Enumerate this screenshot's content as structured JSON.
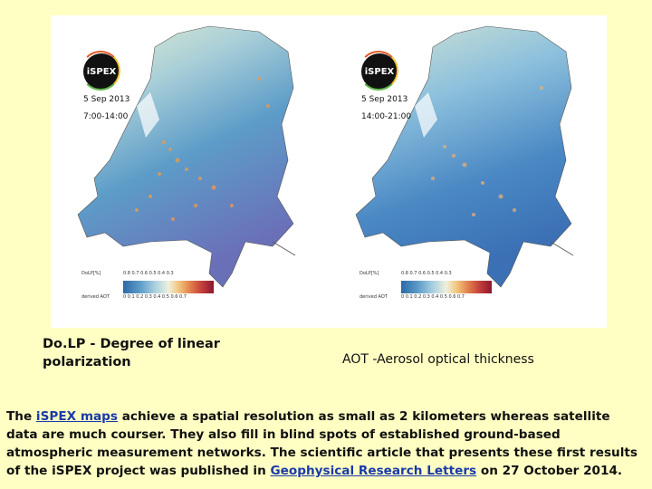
{
  "maps": [
    {
      "id": "left",
      "badge": "iSPEX",
      "date": "5 Sep 2013",
      "time": "7:00-14:00",
      "legend_top_label": "DoLP[%]",
      "legend_top_ticks": "0.8 0.7 0.6  0.5   0.4    0.3",
      "legend_bottom_label": "derived AOT",
      "legend_bottom_ticks": "0   0.1   0.2   0.3   0.4   0.5   0.6   0.7"
    },
    {
      "id": "right",
      "badge": "iSPEX",
      "date": "5 Sep 2013",
      "time": "14:00-21:00",
      "legend_top_label": "DoLP[%]",
      "legend_top_ticks": "0.8 0.7 0.6  0.5   0.4    0.3",
      "legend_bottom_label": "derived AOT",
      "legend_bottom_ticks": "0   0.1   0.2   0.3   0.4   0.5   0.6   0.7"
    }
  ],
  "captions": {
    "left": "Do.LP - Degree of linear polarization",
    "right": "AOT -Aerosol  optical thickness"
  },
  "paragraph": {
    "before_link1": "The ",
    "link1": "iSPEX maps",
    "after_link1": " achieve a spatial resolution as small as 2 kilometers whereas satellite data are much courser. They also fill in blind spots of established ground-based atmospheric measurement networks. The scientific article that presents these first results of the iSPEX project was published in ",
    "link2": "Geophysical Research Letters",
    "after_link2": " on 27 October 2014."
  },
  "colors": {
    "page_background": "#ffffc4",
    "link": "#1a3aa8",
    "map_low": "#2c6aa8",
    "map_high": "#8a1830"
  }
}
